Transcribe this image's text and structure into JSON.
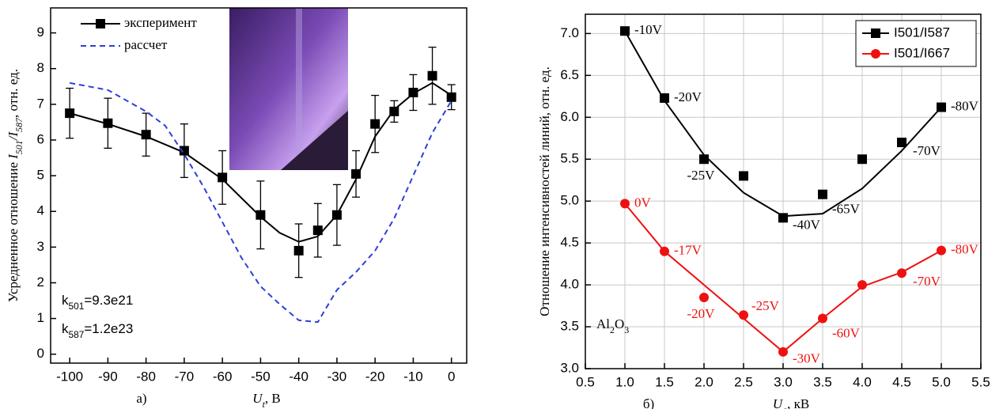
{
  "chart_data": [
    {
      "type": "line",
      "panel_label": "а)",
      "xlabel": [
        {
          "text": "U",
          "italic": true
        },
        {
          "text": "t",
          "italic": true,
          "sub": true
        },
        {
          "text": ", В"
        }
      ],
      "ylabel": [
        {
          "text": "Усредненное отношение "
        },
        {
          "text": "I",
          "italic": true
        },
        {
          "text": "501",
          "italic": true,
          "sub": true
        },
        {
          "text": "/I",
          "italic": true
        },
        {
          "text": "587",
          "italic": true,
          "sub": true
        },
        {
          "text": ", отн. ед."
        }
      ],
      "xlim": [
        -105,
        4
      ],
      "xticks": [
        -100,
        -90,
        -80,
        -70,
        -60,
        -50,
        -40,
        -30,
        -20,
        -10,
        0
      ],
      "ylim": [
        -0.25,
        9.7
      ],
      "yticks": [
        0,
        1,
        2,
        3,
        4,
        5,
        6,
        7,
        8,
        9
      ],
      "grid": false,
      "legend": "upper left",
      "series": [
        {
          "name": "эксперимент",
          "color": "#000000",
          "marker": "square",
          "x": [
            -100,
            -90,
            -80,
            -70,
            -60,
            -50,
            -40,
            -35,
            -30,
            -25,
            -20,
            -15,
            -10,
            -5,
            0
          ],
          "values": [
            6.75,
            6.47,
            6.15,
            5.7,
            4.95,
            3.9,
            2.9,
            3.47,
            3.9,
            5.05,
            6.45,
            6.8,
            7.33,
            7.8,
            7.2
          ],
          "errors": [
            0.7,
            0.7,
            0.6,
            0.75,
            0.75,
            0.95,
            0.75,
            0.75,
            0.85,
            0.65,
            0.8,
            0.3,
            0.5,
            0.8,
            0.35
          ],
          "fit": {
            "x": [
              -100,
              -90,
              -80,
              -70,
              -60,
              -50,
              -45,
              -40,
              -35,
              -30,
              -25,
              -20,
              -15,
              -10,
              -5,
              0
            ],
            "values": [
              6.75,
              6.45,
              6.1,
              5.65,
              4.9,
              3.85,
              3.4,
              3.15,
              3.3,
              3.9,
              4.9,
              6.1,
              6.85,
              7.3,
              7.6,
              7.25
            ]
          }
        },
        {
          "name": "рассчет",
          "color": "#2b3fd8",
          "dash": true,
          "x": [
            -100,
            -90,
            -80,
            -75,
            -70,
            -65,
            -60,
            -55,
            -50,
            -45,
            -40,
            -35,
            -30,
            -25,
            -20,
            -15,
            -10,
            -5,
            0
          ],
          "values": [
            7.6,
            7.4,
            6.8,
            6.4,
            5.6,
            4.7,
            3.7,
            2.7,
            1.9,
            1.4,
            0.95,
            0.9,
            1.8,
            2.3,
            2.9,
            3.8,
            5.0,
            6.2,
            7.1
          ]
        }
      ],
      "annotations": [
        [
          {
            "text": "k"
          },
          {
            "text": "501",
            "sub": true
          },
          {
            "text": "=9.3e21"
          }
        ],
        [
          {
            "text": "k"
          },
          {
            "text": "587",
            "sub": true
          },
          {
            "text": "=1.2e23"
          }
        ]
      ]
    },
    {
      "type": "line",
      "panel_label": "б)",
      "xlabel": [
        {
          "text": "U",
          "italic": true
        },
        {
          "text": "a",
          "italic": true,
          "sub": true
        },
        {
          "text": ", кВ"
        }
      ],
      "ylabel": [
        {
          "text": "Отношение интенсивностей линий, отн. ед."
        }
      ],
      "xlim": [
        0.5,
        5.5
      ],
      "xticks": [
        {
          "value": 0.5,
          "label": "0.5"
        },
        {
          "value": 1,
          "label": "1.0"
        },
        {
          "value": 1.5,
          "label": "1.5"
        },
        {
          "value": 2,
          "label": "2.0"
        },
        {
          "value": 2.5,
          "label": "2.5"
        },
        {
          "value": 3,
          "label": "3.0"
        },
        {
          "value": 3.5,
          "label": "3.5"
        },
        {
          "value": 4,
          "label": "4.0"
        },
        {
          "value": 4.5,
          "label": "4.5"
        },
        {
          "value": 5,
          "label": "5.0"
        },
        {
          "value": 5.5,
          "label": "5.5"
        }
      ],
      "ylim": [
        3.0,
        7.23
      ],
      "yticks": [
        {
          "value": 3,
          "label": "3.0"
        },
        {
          "value": 3.5,
          "label": "3.5"
        },
        {
          "value": 4,
          "label": "4.0"
        },
        {
          "value": 4.5,
          "label": "4.5"
        },
        {
          "value": 5,
          "label": "5.0"
        },
        {
          "value": 5.5,
          "label": "5.5"
        },
        {
          "value": 6,
          "label": "6.0"
        },
        {
          "value": 6.5,
          "label": "6.5"
        },
        {
          "value": 7,
          "label": "7.0"
        }
      ],
      "grid": true,
      "legend": "upper right",
      "series": [
        {
          "name": "I501/I587",
          "color": "#000000",
          "marker": "square",
          "x": [
            1,
            1.5,
            2,
            2.5,
            3,
            3.5,
            4,
            4.5,
            5
          ],
          "values": [
            7.03,
            6.23,
            5.5,
            5.3,
            4.8,
            5.08,
            5.5,
            5.7,
            6.12
          ],
          "point_labels": [
            "-10V",
            "-20V",
            "-25V",
            null,
            "-40V",
            "-65V",
            null,
            "-70V",
            "-80V"
          ],
          "fit": {
            "x": [
              1,
              1.5,
              2,
              2.5,
              3,
              3.5,
              4,
              4.5,
              5
            ],
            "values": [
              7.03,
              6.2,
              5.55,
              5.1,
              4.82,
              4.85,
              5.15,
              5.6,
              6.12
            ]
          }
        },
        {
          "name": "I501/I667",
          "color": "#ee1111",
          "marker": "circle",
          "x": [
            1,
            1.5,
            2,
            2.5,
            3,
            3.5,
            4,
            4.5,
            5
          ],
          "values": [
            4.97,
            4.4,
            3.85,
            3.64,
            3.2,
            3.6,
            4.0,
            4.14,
            4.41
          ],
          "point_labels": [
            "0V",
            "-17V",
            "-20V",
            "-25V",
            "-30V",
            "-60V",
            null,
            "-70V",
            "-80V"
          ],
          "fit": {
            "x": [
              1,
              1.5,
              2,
              2.5,
              3,
              3.5,
              4,
              4.5,
              5
            ],
            "values": [
              4.97,
              4.4,
              4.0,
              3.6,
              3.2,
              3.6,
              3.98,
              4.15,
              4.41
            ]
          }
        }
      ],
      "annotations": [
        [
          {
            "text": "Al"
          },
          {
            "text": "2",
            "sub": true
          },
          {
            "text": "O"
          },
          {
            "text": "3",
            "sub": true
          }
        ]
      ]
    }
  ]
}
